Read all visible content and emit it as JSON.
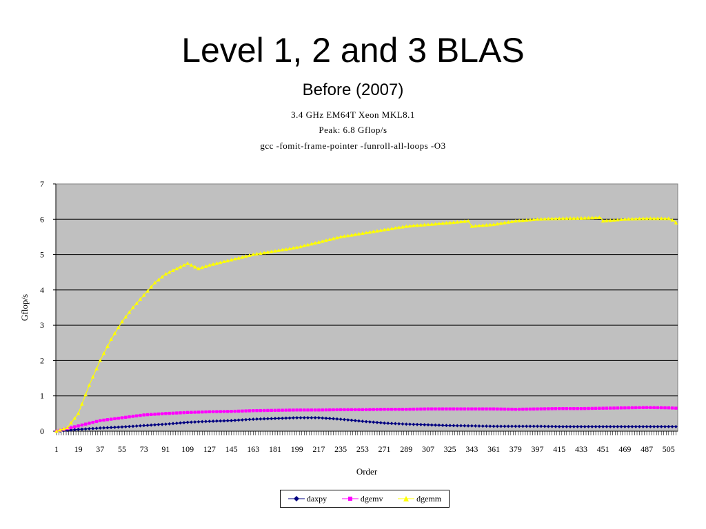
{
  "slide": {
    "title": "Level 1, 2 and 3 BLAS",
    "subtitle": "Before (2007)"
  },
  "chart_data": {
    "type": "line",
    "title_lines": [
      "3.4 GHz EM64T Xeon MKL8.1",
      "Peak: 6.8 Gflop/s",
      "gcc -fomit-frame-pointer -funroll-all-loops -O3"
    ],
    "xlabel": "Order",
    "ylabel": "Gflop/s",
    "ylim": [
      0,
      7
    ],
    "yticks": [
      0,
      1,
      2,
      3,
      4,
      5,
      6,
      7
    ],
    "xticks": [
      1,
      19,
      37,
      55,
      73,
      91,
      109,
      127,
      145,
      163,
      181,
      199,
      217,
      235,
      253,
      271,
      289,
      307,
      325,
      343,
      361,
      379,
      397,
      415,
      433,
      451,
      469,
      487,
      505
    ],
    "x_count": 512,
    "grid": true,
    "legend_position": "bottom",
    "series": [
      {
        "name": "daxpy",
        "color": "#000080",
        "marker": "diamond",
        "x": [
          1,
          19,
          37,
          55,
          73,
          91,
          109,
          127,
          145,
          163,
          181,
          199,
          217,
          235,
          253,
          271,
          289,
          307,
          325,
          343,
          361,
          379,
          397,
          415,
          433,
          451,
          469,
          487,
          505,
          512
        ],
        "values": [
          0.0,
          0.05,
          0.09,
          0.12,
          0.16,
          0.2,
          0.25,
          0.28,
          0.3,
          0.34,
          0.36,
          0.38,
          0.38,
          0.34,
          0.28,
          0.23,
          0.2,
          0.18,
          0.16,
          0.15,
          0.14,
          0.14,
          0.14,
          0.13,
          0.13,
          0.13,
          0.13,
          0.13,
          0.13,
          0.13
        ]
      },
      {
        "name": "dgemv",
        "color": "#ff00ff",
        "marker": "square",
        "x": [
          1,
          19,
          37,
          55,
          73,
          91,
          109,
          127,
          145,
          163,
          181,
          199,
          217,
          235,
          253,
          271,
          289,
          307,
          325,
          343,
          361,
          379,
          397,
          415,
          433,
          451,
          469,
          487,
          505,
          512
        ],
        "values": [
          0.0,
          0.15,
          0.3,
          0.38,
          0.46,
          0.5,
          0.53,
          0.55,
          0.56,
          0.58,
          0.59,
          0.6,
          0.6,
          0.61,
          0.61,
          0.62,
          0.62,
          0.63,
          0.63,
          0.63,
          0.63,
          0.62,
          0.63,
          0.64,
          0.64,
          0.65,
          0.66,
          0.67,
          0.66,
          0.65
        ]
      },
      {
        "name": "dgemm",
        "color": "#ffff00",
        "marker": "triangle",
        "x": [
          1,
          10,
          19,
          28,
          37,
          46,
          55,
          64,
          73,
          82,
          91,
          100,
          109,
          118,
          127,
          145,
          163,
          181,
          199,
          217,
          235,
          253,
          271,
          289,
          307,
          325,
          340,
          343,
          361,
          379,
          397,
          415,
          433,
          449,
          451,
          469,
          487,
          505,
          510,
          512
        ],
        "values": [
          0.0,
          0.1,
          0.5,
          1.3,
          2.0,
          2.6,
          3.1,
          3.5,
          3.85,
          4.2,
          4.45,
          4.6,
          4.75,
          4.6,
          4.7,
          4.85,
          5.0,
          5.1,
          5.2,
          5.35,
          5.5,
          5.6,
          5.7,
          5.8,
          5.85,
          5.9,
          5.95,
          5.8,
          5.85,
          5.95,
          6.0,
          6.02,
          6.03,
          6.05,
          5.95,
          6.0,
          6.02,
          6.02,
          5.95,
          5.85
        ]
      }
    ]
  }
}
